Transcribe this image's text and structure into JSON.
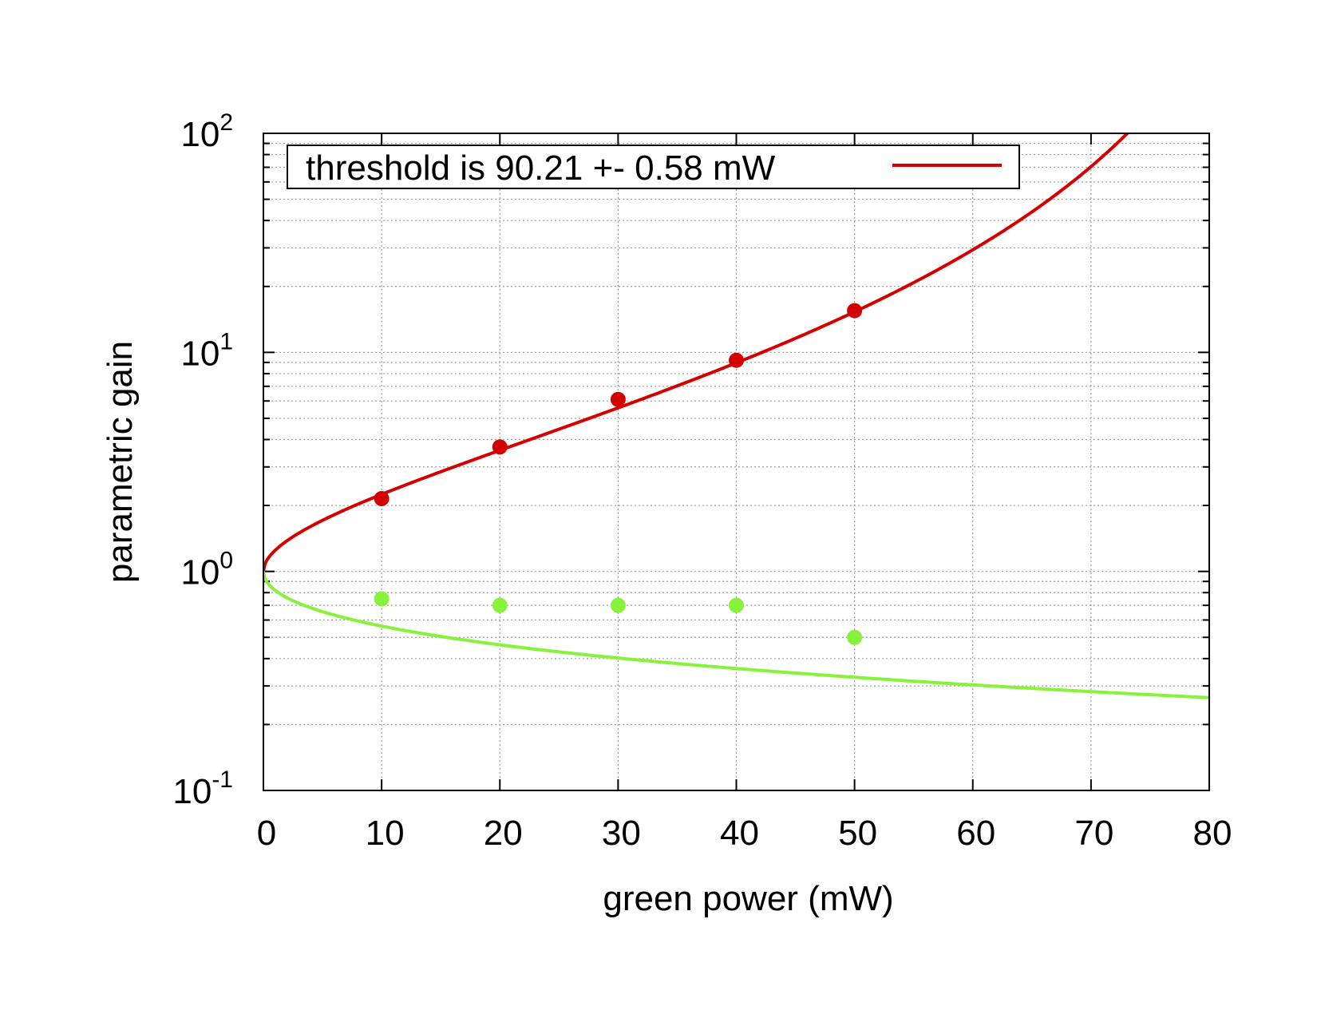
{
  "chart_data": {
    "type": "scatter",
    "xlabel": "green power (mW)",
    "ylabel": "parametric gain",
    "xlim": [
      0,
      80
    ],
    "ylim": [
      0.1,
      100
    ],
    "yscale": "log",
    "grid": true,
    "legend": {
      "placement": "top-left",
      "entries": [
        "threshold is 90.21 +- 0.58 mW"
      ]
    },
    "x_ticks": [
      "0",
      "10",
      "20",
      "30",
      "40",
      "50",
      "60",
      "70",
      "80"
    ],
    "y_ticks": [
      {
        "base": "10",
        "exp": "-1"
      },
      {
        "base": "10",
        "exp": "0"
      },
      {
        "base": "10",
        "exp": "1"
      },
      {
        "base": "10",
        "exp": "2"
      }
    ],
    "fit": {
      "threshold_mW": 90.21,
      "threshold_err_mW": 0.58
    },
    "series": [
      {
        "kind": "line",
        "name": "threshold is 90.21 +- 0.58 mW",
        "color": "#d40000",
        "formula": "1/(1-sqrt(x/90.21))^2"
      },
      {
        "kind": "line",
        "color": "#88f23a",
        "formula": "1/(1+sqrt(x/90.21))^2"
      },
      {
        "kind": "points",
        "color": "#d40000",
        "x": [
          10,
          20,
          30,
          40,
          50
        ],
        "y": [
          2.15,
          3.7,
          6.1,
          9.2,
          15.5
        ]
      },
      {
        "kind": "points",
        "color": "#88f23a",
        "x": [
          10,
          20,
          30,
          40,
          50
        ],
        "y": [
          0.75,
          0.7,
          0.7,
          0.7,
          0.5
        ]
      }
    ]
  }
}
